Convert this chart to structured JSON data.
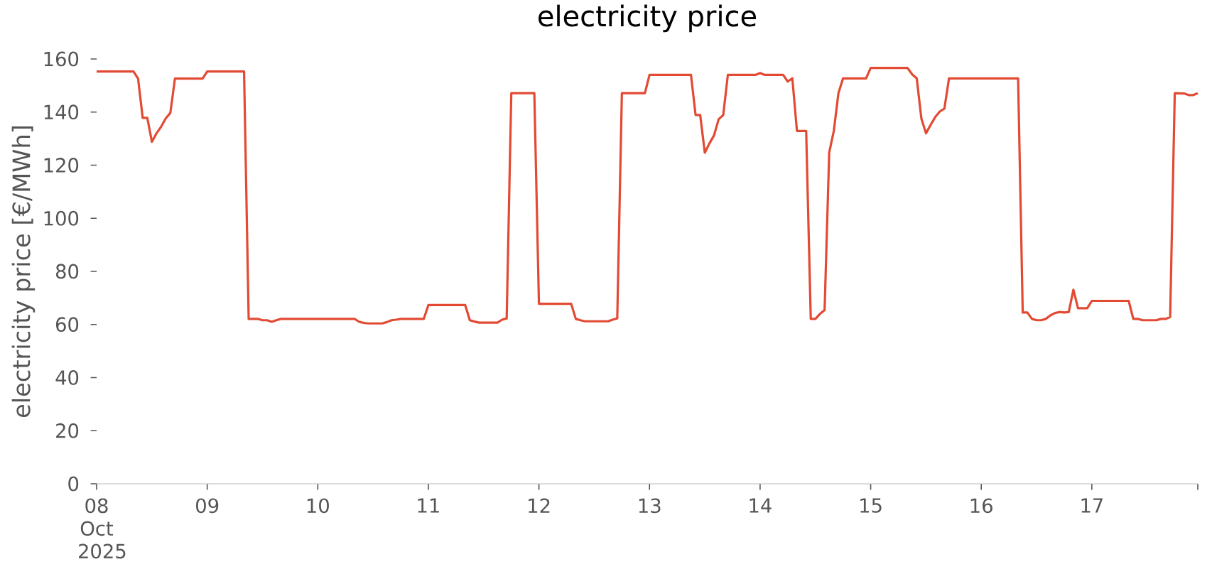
{
  "chart_data": {
    "type": "line",
    "title": "electricity price",
    "ylabel": "electricity price [€/MWh]",
    "color": "#e24a33",
    "x": [
      "2025-10-08T00:00",
      "2025-10-08T08:00",
      "2025-10-08T09:00",
      "2025-10-08T10:00",
      "2025-10-08T11:00",
      "2025-10-08T12:00",
      "2025-10-08T13:00",
      "2025-10-08T14:00",
      "2025-10-08T15:00",
      "2025-10-08T16:00",
      "2025-10-08T17:00",
      "2025-10-08T23:00",
      "2025-10-09T00:00",
      "2025-10-09T08:00",
      "2025-10-09T09:00",
      "2025-10-09T11:00",
      "2025-10-09T12:00",
      "2025-10-09T13:00",
      "2025-10-09T14:00",
      "2025-10-09T15:00",
      "2025-10-09T16:00",
      "2025-10-10T08:00",
      "2025-10-10T09:00",
      "2025-10-10T10:00",
      "2025-10-10T11:00",
      "2025-10-10T14:00",
      "2025-10-10T15:00",
      "2025-10-10T16:00",
      "2025-10-10T17:00",
      "2025-10-10T18:00",
      "2025-10-10T23:00",
      "2025-10-11T00:00",
      "2025-10-11T08:00",
      "2025-10-11T09:00",
      "2025-10-11T10:00",
      "2025-10-11T11:00",
      "2025-10-11T15:00",
      "2025-10-11T16:00",
      "2025-10-11T17:00",
      "2025-10-11T18:00",
      "2025-10-11T23:00",
      "2025-10-12T00:00",
      "2025-10-12T07:00",
      "2025-10-12T08:00",
      "2025-10-12T09:00",
      "2025-10-12T10:00",
      "2025-10-12T15:00",
      "2025-10-12T16:00",
      "2025-10-12T17:00",
      "2025-10-12T18:00",
      "2025-10-12T23:00",
      "2025-10-13T00:00",
      "2025-10-13T09:00",
      "2025-10-13T10:00",
      "2025-10-13T11:00",
      "2025-10-13T12:00",
      "2025-10-13T13:00",
      "2025-10-13T14:00",
      "2025-10-13T15:00",
      "2025-10-13T16:00",
      "2025-10-13T17:00",
      "2025-10-13T23:00",
      "2025-10-14T00:00",
      "2025-10-14T01:00",
      "2025-10-14T05:00",
      "2025-10-14T06:00",
      "2025-10-14T07:00",
      "2025-10-14T08:00",
      "2025-10-14T10:00",
      "2025-10-14T11:00",
      "2025-10-14T12:00",
      "2025-10-14T13:00",
      "2025-10-14T14:00",
      "2025-10-14T15:00",
      "2025-10-14T16:00",
      "2025-10-14T17:00",
      "2025-10-14T18:00",
      "2025-10-14T23:00",
      "2025-10-15T00:00",
      "2025-10-15T08:00",
      "2025-10-15T09:00",
      "2025-10-15T10:00",
      "2025-10-15T11:00",
      "2025-10-15T12:00",
      "2025-10-15T13:00",
      "2025-10-15T14:00",
      "2025-10-15T15:00",
      "2025-10-15T16:00",
      "2025-10-15T17:00",
      "2025-10-16T08:00",
      "2025-10-16T09:00",
      "2025-10-16T10:00",
      "2025-10-16T11:00",
      "2025-10-16T12:00",
      "2025-10-16T13:00",
      "2025-10-16T14:00",
      "2025-10-16T15:00",
      "2025-10-16T16:00",
      "2025-10-16T17:00",
      "2025-10-16T18:00",
      "2025-10-16T19:00",
      "2025-10-16T20:00",
      "2025-10-16T21:00",
      "2025-10-16T23:00",
      "2025-10-17T00:00",
      "2025-10-17T08:00",
      "2025-10-17T09:00",
      "2025-10-17T10:00",
      "2025-10-17T11:00",
      "2025-10-17T14:00",
      "2025-10-17T15:00",
      "2025-10-17T16:00",
      "2025-10-17T17:00",
      "2025-10-17T18:00",
      "2025-10-17T20:00",
      "2025-10-17T21:00",
      "2025-10-17T22:00",
      "2025-10-17T23:00"
    ],
    "values": [
      155.3,
      155.3,
      152.6,
      137.8,
      137.8,
      128.8,
      132.0,
      134.5,
      137.6,
      139.7,
      152.6,
      152.6,
      155.3,
      155.3,
      62.1,
      62.1,
      61.6,
      61.6,
      61.0,
      61.6,
      62.1,
      62.1,
      61.0,
      60.6,
      60.4,
      60.4,
      60.9,
      61.6,
      61.8,
      62.1,
      62.1,
      67.3,
      67.3,
      61.6,
      61.1,
      60.7,
      60.7,
      61.8,
      62.3,
      147.1,
      147.1,
      67.8,
      67.8,
      62.1,
      61.6,
      61.2,
      61.2,
      61.8,
      62.3,
      147.1,
      147.1,
      154.0,
      154.0,
      138.9,
      138.9,
      124.7,
      128.2,
      131.2,
      137.3,
      138.9,
      154.0,
      154.0,
      154.7,
      154.0,
      154.0,
      151.5,
      152.7,
      132.9,
      132.9,
      62.1,
      62.1,
      64.0,
      65.4,
      124.7,
      132.9,
      147.1,
      152.7,
      152.7,
      156.6,
      156.6,
      154.2,
      152.7,
      137.6,
      132.0,
      135.1,
      138.1,
      140.2,
      141.3,
      152.7,
      152.7,
      64.5,
      64.5,
      62.1,
      61.6,
      61.6,
      62.1,
      63.4,
      64.3,
      64.7,
      64.5,
      64.7,
      73.1,
      66.1,
      66.1,
      68.9,
      68.9,
      62.1,
      62.1,
      61.6,
      61.6,
      62.1,
      62.1,
      62.8,
      147.1,
      147.0,
      146.4,
      146.4,
      147.1
    ],
    "xlim": [
      "2025-10-08T00:00",
      "2025-10-17T23:00"
    ],
    "xticks": [
      {
        "value": "2025-10-08",
        "label": "08 Oct 2025"
      },
      {
        "value": "2025-10-09",
        "label": "09"
      },
      {
        "value": "2025-10-10",
        "label": "10"
      },
      {
        "value": "2025-10-11",
        "label": "11"
      },
      {
        "value": "2025-10-12",
        "label": "12"
      },
      {
        "value": "2025-10-13",
        "label": "13"
      },
      {
        "value": "2025-10-14",
        "label": "14"
      },
      {
        "value": "2025-10-15",
        "label": "15"
      },
      {
        "value": "2025-10-16",
        "label": "16"
      },
      {
        "value": "2025-10-17",
        "label": "17"
      },
      {
        "value": "2025-10-17T23:00",
        "label": null
      }
    ],
    "ylim": [
      0,
      160
    ],
    "yticks": [
      0,
      20,
      40,
      60,
      80,
      100,
      120,
      140,
      160
    ]
  }
}
